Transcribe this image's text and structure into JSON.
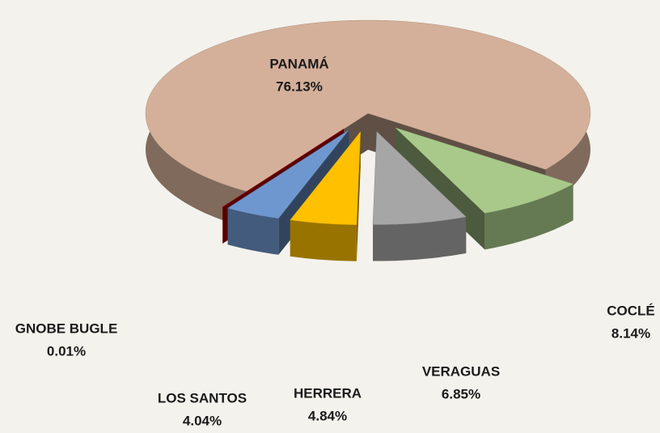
{
  "chart_data": {
    "type": "pie3d",
    "categories": [
      "PANAMÁ",
      "COCLÉ",
      "VERAGUAS",
      "HERRERA",
      "LOS SANTOS",
      "GNOBE BUGLE"
    ],
    "values": [
      76.13,
      8.14,
      6.85,
      4.84,
      4.04,
      0.01
    ],
    "value_labels": [
      "76.13%",
      "8.14%",
      "6.85%",
      "4.84%",
      "4.04%",
      "0.01%"
    ],
    "colors": [
      "#d4b09a",
      "#a9c98a",
      "#a6a6a6",
      "#ffc000",
      "#6f97cf",
      "#c00000"
    ]
  }
}
